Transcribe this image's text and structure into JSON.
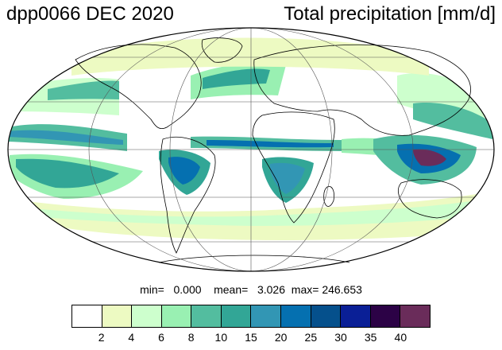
{
  "title": {
    "left": "dpp0066 DEC 2020",
    "right": "Total precipitation [mm/d]"
  },
  "stats": {
    "min_label": "min=",
    "min_value": "0.000",
    "mean_label": "mean=",
    "mean_value": "3.026",
    "max_label": "max=",
    "max_value": "246.653"
  },
  "colorbar": {
    "colors": [
      "#ffffff",
      "#edfac2",
      "#cdffcd",
      "#99f0b2",
      "#53bd9f",
      "#32a696",
      "#3296b4",
      "#0570b0",
      "#05508c",
      "#0a1f96",
      "#2c0246",
      "#6a2c5a"
    ],
    "ticks": [
      "2",
      "4",
      "6",
      "8",
      "10",
      "15",
      "20",
      "25",
      "30",
      "35",
      "40"
    ]
  },
  "map": {
    "projection": "mollweide",
    "ocean_color": "#ffffff",
    "outline_color": "#000000",
    "gridline_color": "#555555"
  }
}
